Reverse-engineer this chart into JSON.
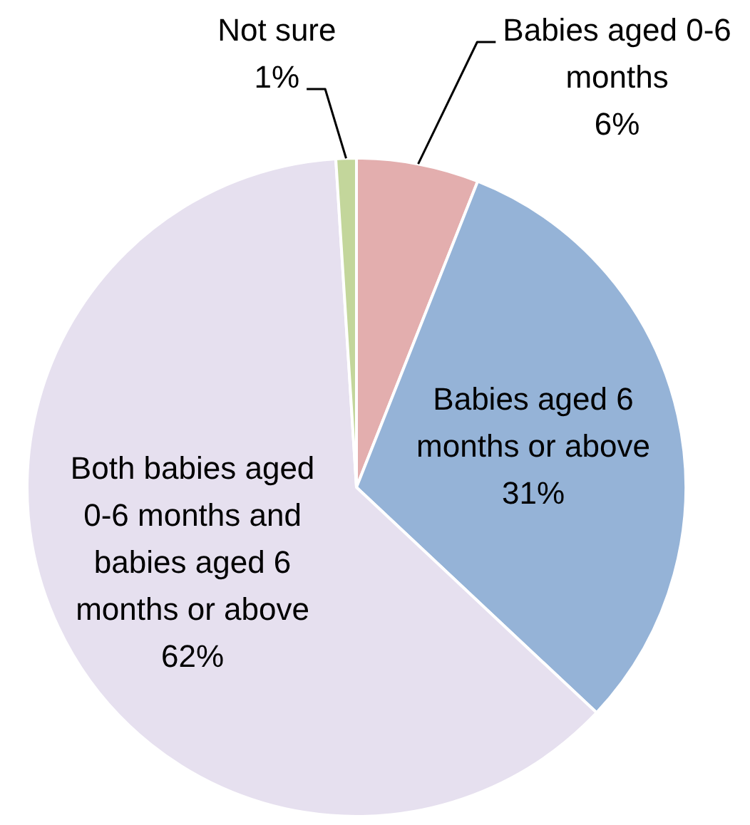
{
  "chart_data": {
    "type": "pie",
    "categories": [
      "Babies aged 0-6 months",
      "Babies aged 6 months or above",
      "Both babies aged 0-6 months and babies aged 6 months or above",
      "Not sure"
    ],
    "values": [
      6,
      31,
      62,
      1
    ],
    "value_labels": [
      "6%",
      "31%",
      "62%",
      "1%"
    ],
    "colors": [
      "#e3aeae",
      "#95b3d7",
      "#e6e0ef",
      "#c3d69b"
    ],
    "legend": false
  }
}
